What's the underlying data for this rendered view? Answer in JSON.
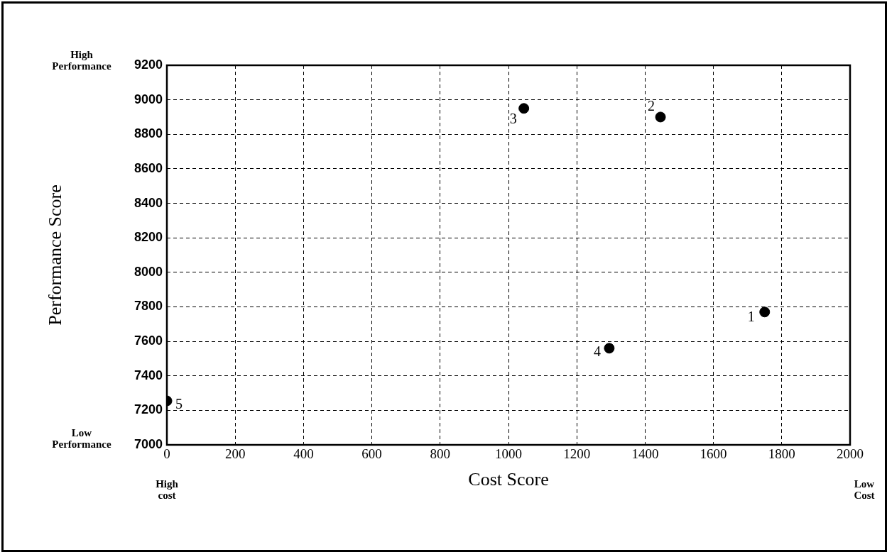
{
  "chart_data": {
    "type": "scatter",
    "xlabel": "Cost Score",
    "ylabel": "Performance Score",
    "x": [
      1750,
      1445,
      1045,
      1295,
      0
    ],
    "values": [
      7770,
      8900,
      8950,
      7560,
      7255
    ],
    "color": "#000000",
    "marker": "circle",
    "grid": true,
    "xlim": [
      0,
      2000
    ],
    "xticks": [
      0,
      200,
      400,
      600,
      800,
      1000,
      1200,
      1400,
      1600,
      1800,
      2000
    ],
    "ylim": [
      7000,
      9200
    ],
    "yticks": [
      7000,
      7200,
      7400,
      7600,
      7800,
      8000,
      8200,
      8400,
      8600,
      8800,
      9000,
      9200
    ],
    "annotations": [
      "High Performance",
      "Low Performance",
      "High cost",
      "Low Cost",
      {
        "text": "1",
        "x": 1750,
        "y": 7770
      },
      {
        "text": "2",
        "x": 1445,
        "y": 8900
      },
      {
        "text": "3",
        "x": 1045,
        "y": 8950
      },
      {
        "text": "4",
        "x": 1295,
        "y": 7560
      },
      {
        "text": "5",
        "x": 0,
        "y": 7255
      }
    ]
  }
}
